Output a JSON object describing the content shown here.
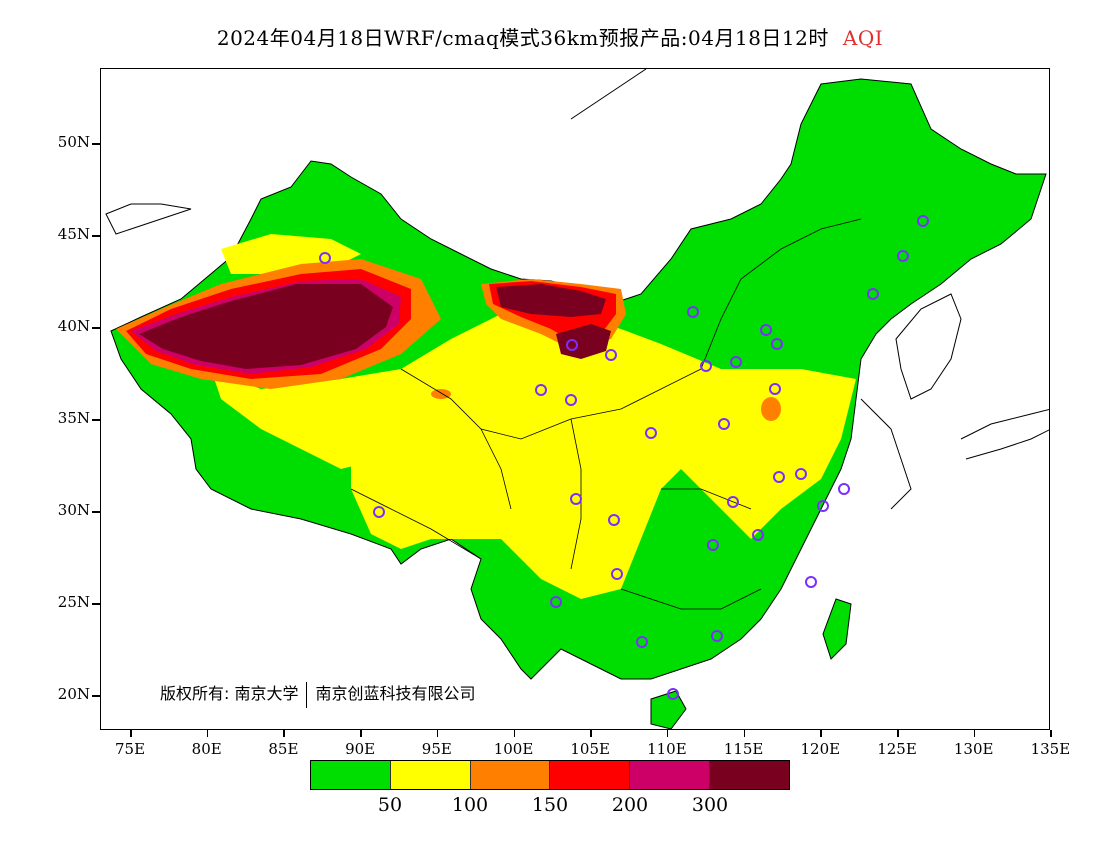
{
  "title": {
    "text": "2024年04月18日WRF/cmaq模式36km预报产品:04月18日12时",
    "pollutant": "AQI",
    "pollutant_color": "#e03030"
  },
  "map": {
    "lat_labels": [
      "50N",
      "45N",
      "40N",
      "35N",
      "30N",
      "25N",
      "20N"
    ],
    "lon_labels": [
      "75E",
      "80E",
      "85E",
      "90E",
      "95E",
      "100E",
      "105E",
      "110E",
      "115E",
      "120E",
      "125E",
      "130E",
      "135E"
    ],
    "lon_range": [
      73,
      135
    ],
    "lat_range": [
      18,
      54
    ]
  },
  "legend": {
    "colors": [
      "#00dd00",
      "#ffff00",
      "#ff8000",
      "#ff0000",
      "#cc0066",
      "#7a0020"
    ],
    "labels": [
      "50",
      "100",
      "150",
      "200",
      "300"
    ]
  },
  "copyright": {
    "prefix": "版权所有: 南京大学",
    "org": "南京创蓝科技有限公司"
  }
}
